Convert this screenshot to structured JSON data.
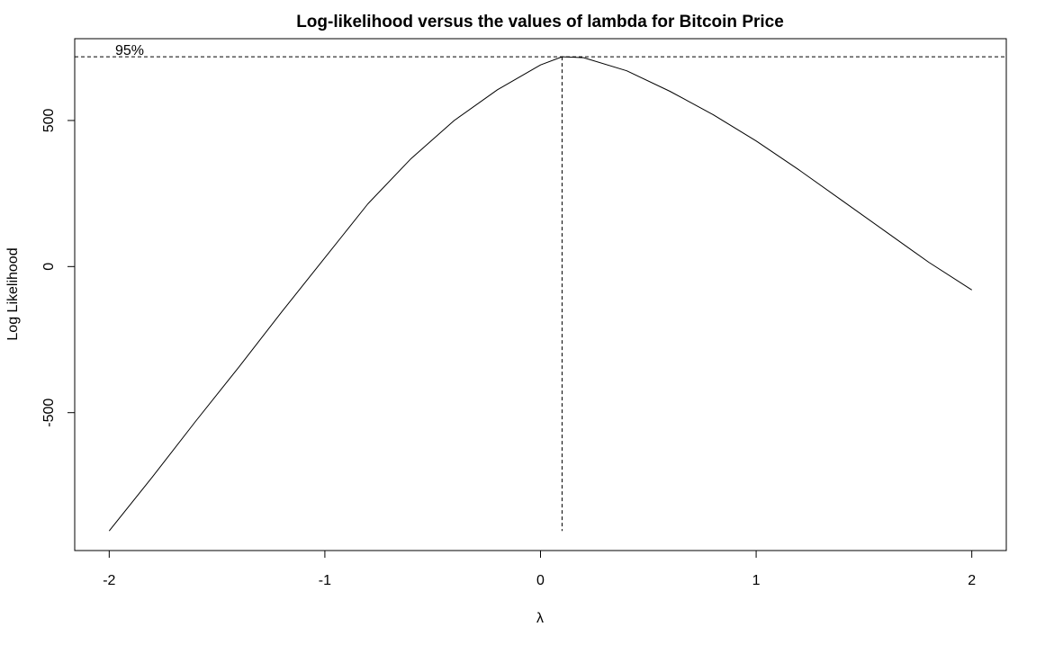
{
  "chart_data": {
    "type": "line",
    "title": "Log-likelihood versus the values of lambda for Bitcoin Price",
    "xlabel": "λ",
    "ylabel": "Log Likelihood",
    "xlim": [
      -2.16,
      2.16
    ],
    "ylim": [
      -972,
      780
    ],
    "xticks": [
      -2,
      -1,
      0,
      1,
      2
    ],
    "xtick_labels": [
      "-2",
      "-1",
      "0",
      "1",
      "2"
    ],
    "yticks": [
      -500,
      0,
      500
    ],
    "ytick_labels": [
      "-500",
      "0",
      "500"
    ],
    "grid": false,
    "series": [
      {
        "x": [
          -2.0,
          -1.8,
          -1.6,
          -1.4,
          -1.2,
          -1.0,
          -0.8,
          -0.6,
          -0.4,
          -0.2,
          0.0,
          0.1,
          0.2,
          0.4,
          0.6,
          0.8,
          1.0,
          1.2,
          1.4,
          1.6,
          1.8,
          2.0
        ],
        "y": [
          -905,
          -720,
          -530,
          -345,
          -155,
          30,
          215,
          370,
          500,
          605,
          690,
          718,
          715,
          670,
          600,
          520,
          430,
          330,
          225,
          120,
          15,
          -80
        ]
      }
    ],
    "annotations": [
      {
        "type": "hline",
        "y": 718,
        "style": "dashed",
        "label": "95%"
      },
      {
        "type": "vline",
        "x": 0.1,
        "y_from": -905,
        "y_to": 718,
        "style": "dashed"
      }
    ]
  }
}
